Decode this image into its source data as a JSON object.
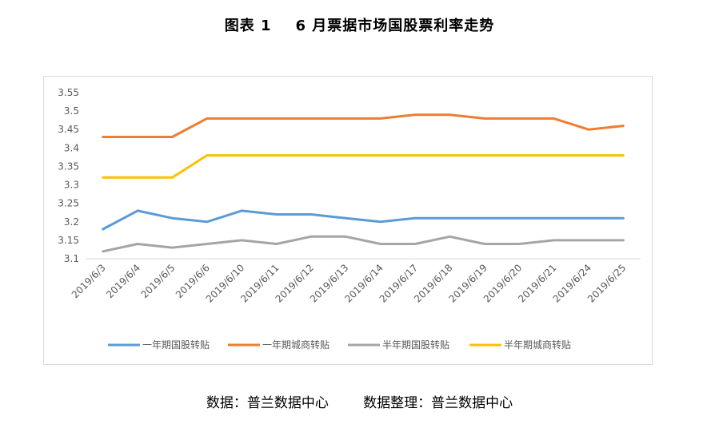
{
  "title_prefix": "图表 1",
  "title_main": "6 月票据市场国股票利率走势",
  "source_left": "数据：普兰数据中心",
  "source_right": "数据整理：普兰数据中心",
  "chart_data": {
    "type": "line",
    "categories": [
      "2019/6/3",
      "2019/6/4",
      "2019/6/5",
      "2019/6/6",
      "2019/6/10",
      "2019/6/11",
      "2019/6/12",
      "2019/6/13",
      "2019/6/14",
      "2019/6/17",
      "2019/6/18",
      "2019/6/19",
      "2019/6/20",
      "2019/6/21",
      "2019/6/24",
      "2019/6/25"
    ],
    "ylim": [
      3.1,
      3.55
    ],
    "yticks": [
      "3.1",
      "3.15",
      "3.2",
      "3.25",
      "3.3",
      "3.35",
      "3.4",
      "3.45",
      "3.5",
      "3.55"
    ],
    "grid": false,
    "legend": "bottom",
    "series": [
      {
        "name": "一年期国股转贴",
        "color": "#5b9bd5",
        "values": [
          3.18,
          3.23,
          3.21,
          3.2,
          3.23,
          3.22,
          3.22,
          3.21,
          3.2,
          3.21,
          3.21,
          3.21,
          3.21,
          3.21,
          3.21,
          3.21
        ]
      },
      {
        "name": "一年期城商转贴",
        "color": "#ed7d31",
        "values": [
          3.43,
          3.43,
          3.43,
          3.48,
          3.48,
          3.48,
          3.48,
          3.48,
          3.48,
          3.49,
          3.49,
          3.48,
          3.48,
          3.48,
          3.45,
          3.46
        ]
      },
      {
        "name": "半年期国股转贴",
        "color": "#a5a5a5",
        "values": [
          3.12,
          3.14,
          3.13,
          3.14,
          3.15,
          3.14,
          3.16,
          3.16,
          3.14,
          3.14,
          3.16,
          3.14,
          3.14,
          3.15,
          3.15,
          3.15
        ]
      },
      {
        "name": "半年期城商转贴",
        "color": "#ffc000",
        "values": [
          3.32,
          3.32,
          3.32,
          3.38,
          3.38,
          3.38,
          3.38,
          3.38,
          3.38,
          3.38,
          3.38,
          3.38,
          3.38,
          3.38,
          3.38,
          3.38
        ]
      }
    ]
  }
}
